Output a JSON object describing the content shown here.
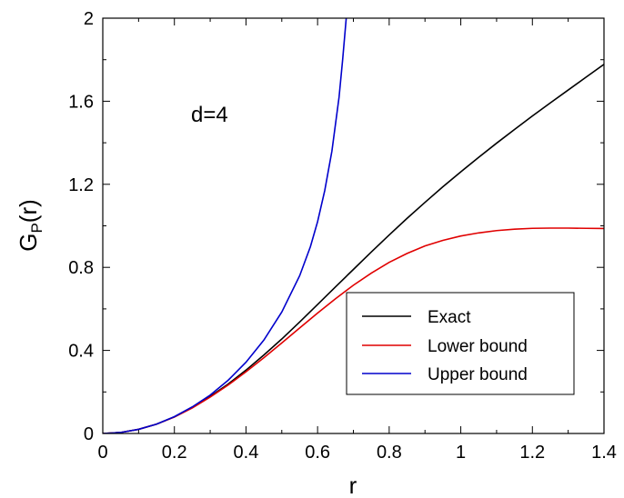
{
  "chart_data": {
    "type": "line",
    "title": "",
    "xlabel": "r",
    "ylabel": {
      "main": "G",
      "sub": "P",
      "tail": "(r)"
    },
    "xlim": [
      0,
      1.4
    ],
    "ylim": [
      0,
      2
    ],
    "xticks": [
      0,
      0.2,
      0.4,
      0.6,
      0.8,
      1,
      1.2,
      1.4
    ],
    "xtick_labels": [
      "0",
      "0.2",
      "0.4",
      "0.6",
      "0.8",
      "1",
      "1.2",
      "1.4"
    ],
    "yticks": [
      0,
      0.4,
      0.8,
      1.2,
      1.6,
      2
    ],
    "ytick_labels": [
      "0",
      "0.4",
      "0.8",
      "1.2",
      "1.6",
      "2"
    ],
    "grid": false,
    "legend_position": "lower-right",
    "annotation": "d=4",
    "series": [
      {
        "name": "Exact",
        "color": "#000000",
        "points": [
          [
            0,
            0
          ],
          [
            0.05,
            0.005
          ],
          [
            0.1,
            0.02
          ],
          [
            0.15,
            0.045
          ],
          [
            0.2,
            0.08
          ],
          [
            0.25,
            0.125
          ],
          [
            0.3,
            0.178
          ],
          [
            0.35,
            0.238
          ],
          [
            0.4,
            0.305
          ],
          [
            0.45,
            0.378
          ],
          [
            0.5,
            0.455
          ],
          [
            0.55,
            0.537
          ],
          [
            0.6,
            0.621
          ],
          [
            0.65,
            0.706
          ],
          [
            0.7,
            0.79
          ],
          [
            0.75,
            0.874
          ],
          [
            0.8,
            0.956
          ],
          [
            0.85,
            1.036
          ],
          [
            0.9,
            1.113
          ],
          [
            0.95,
            1.188
          ],
          [
            1.0,
            1.26
          ],
          [
            1.05,
            1.33
          ],
          [
            1.1,
            1.398
          ],
          [
            1.15,
            1.464
          ],
          [
            1.2,
            1.529
          ],
          [
            1.25,
            1.592
          ],
          [
            1.3,
            1.654
          ],
          [
            1.35,
            1.716
          ],
          [
            1.4,
            1.778
          ]
        ]
      },
      {
        "name": "Lower bound",
        "color": "#e00000",
        "points": [
          [
            0,
            0
          ],
          [
            0.05,
            0.005
          ],
          [
            0.1,
            0.02
          ],
          [
            0.15,
            0.045
          ],
          [
            0.2,
            0.079
          ],
          [
            0.25,
            0.123
          ],
          [
            0.3,
            0.175
          ],
          [
            0.35,
            0.233
          ],
          [
            0.4,
            0.297
          ],
          [
            0.45,
            0.365
          ],
          [
            0.5,
            0.436
          ],
          [
            0.55,
            0.508
          ],
          [
            0.6,
            0.58
          ],
          [
            0.65,
            0.649
          ],
          [
            0.7,
            0.714
          ],
          [
            0.75,
            0.772
          ],
          [
            0.8,
            0.824
          ],
          [
            0.85,
            0.867
          ],
          [
            0.9,
            0.903
          ],
          [
            0.95,
            0.93
          ],
          [
            1.0,
            0.951
          ],
          [
            1.05,
            0.966
          ],
          [
            1.1,
            0.977
          ],
          [
            1.15,
            0.984
          ],
          [
            1.2,
            0.988
          ],
          [
            1.25,
            0.989
          ],
          [
            1.3,
            0.989
          ],
          [
            1.35,
            0.988
          ],
          [
            1.4,
            0.987
          ]
        ]
      },
      {
        "name": "Upper bound",
        "color": "#0000cc",
        "points": [
          [
            0,
            0
          ],
          [
            0.05,
            0.005
          ],
          [
            0.1,
            0.02
          ],
          [
            0.15,
            0.045
          ],
          [
            0.2,
            0.081
          ],
          [
            0.25,
            0.128
          ],
          [
            0.3,
            0.185
          ],
          [
            0.35,
            0.256
          ],
          [
            0.4,
            0.343
          ],
          [
            0.45,
            0.45
          ],
          [
            0.5,
            0.585
          ],
          [
            0.55,
            0.76
          ],
          [
            0.58,
            0.9
          ],
          [
            0.6,
            1.02
          ],
          [
            0.62,
            1.17
          ],
          [
            0.64,
            1.36
          ],
          [
            0.66,
            1.62
          ],
          [
            0.67,
            1.8
          ],
          [
            0.68,
            2.0
          ]
        ]
      }
    ]
  }
}
